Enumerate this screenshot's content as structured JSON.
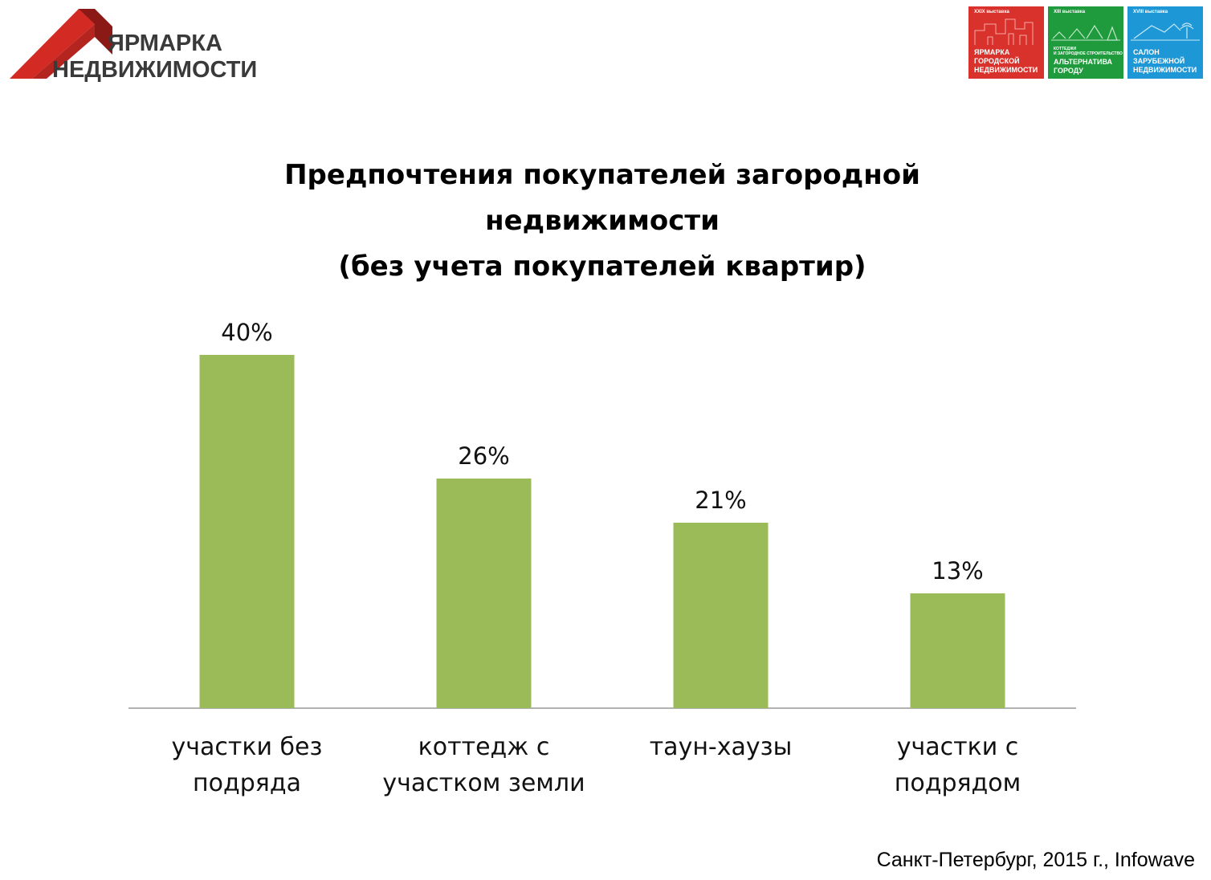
{
  "header": {
    "logo": {
      "line1": "ЯРМАРКА",
      "line2": "НЕДВИЖИМОСТИ",
      "colors": {
        "roof_red": "#d32a24",
        "roof_dark": "#8b1a16",
        "text": "#3a3a3a"
      }
    },
    "badges": [
      {
        "small": "XXIX выставка",
        "name": "ЯРМАРКА\nГОРОДСКОЙ\nНЕДВИЖИМОСТИ",
        "color": "#d9312b"
      },
      {
        "small": "XIII выставка",
        "sub": "КОТТЕДЖИ\nИ ЗАГОРОДНОЕ СТРОИТЕЛЬСТВО",
        "name": "АЛЬТЕРНАТИВА\nГОРОДУ",
        "color": "#1f9a3c"
      },
      {
        "small": "XVIII выставка",
        "name": "САЛОН\nЗАРУБЕЖНОЙ\nНЕДВИЖИМОСТИ",
        "color": "#1e97d6"
      }
    ]
  },
  "chart_data": {
    "type": "bar",
    "title": "Предпочтения покупателей загородной\nнедвижимости\n(без учета покупателей квартир)",
    "categories": [
      "участки без\nподряда",
      "коттедж с\nучастком земли",
      "таун-хаузы",
      "участки с\nподрядом"
    ],
    "values": [
      40,
      26,
      21,
      13
    ],
    "value_labels": [
      "40%",
      "26%",
      "21%",
      "13%"
    ],
    "unit": "%",
    "ylim": [
      0,
      45
    ],
    "grid": false,
    "legend": "none",
    "bar_color": "#9bbb59",
    "axis_color": "#999999"
  },
  "footer": {
    "source": "Санкт-Петербург, 2015 г., Infowave"
  }
}
